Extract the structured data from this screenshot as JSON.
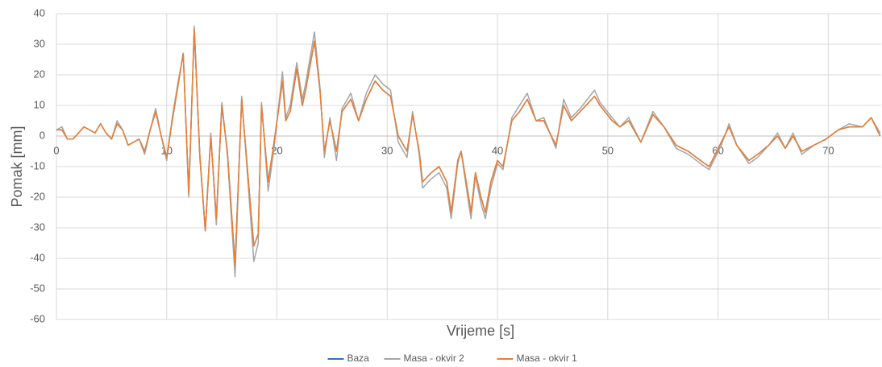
{
  "chart_data": {
    "type": "line",
    "x_label": "Vrijeme [s]",
    "y_label": "Pomak [mm]",
    "xlim": [
      0,
      74.8
    ],
    "xticks": [
      0,
      10,
      20,
      30,
      40,
      50,
      60,
      70
    ],
    "ylim": [
      -60,
      40
    ],
    "yticks": [
      -60,
      -50,
      -40,
      -30,
      -20,
      -10,
      0,
      10,
      20,
      30,
      40
    ],
    "grid": true,
    "legend": "bottom",
    "x": [
      0,
      0.5,
      1,
      1.5,
      2,
      2.5,
      3,
      3.5,
      4,
      4.5,
      5,
      5.5,
      6,
      6.5,
      7,
      7.5,
      8,
      8.5,
      9,
      9.5,
      10,
      10.5,
      11,
      11.5,
      12,
      12.5,
      13,
      13.5,
      14,
      14.5,
      15,
      15.5,
      16.2,
      16.8,
      17.9,
      18.3,
      18.6,
      19.2,
      19.7,
      20.5,
      20.8,
      21.2,
      21.8,
      22.3,
      22.6,
      23.4,
      23.9,
      24.3,
      24.8,
      25.4,
      25.9,
      26.7,
      27.4,
      28.1,
      28.9,
      29.6,
      30.3,
      31,
      31.8,
      32.3,
      32.9,
      33.2,
      34,
      34.7,
      35.4,
      35.8,
      36.4,
      36.7,
      37.3,
      37.6,
      38,
      38.5,
      38.9,
      39.4,
      40,
      40.5,
      41.3,
      42,
      42.7,
      43.5,
      44.2,
      45.3,
      46,
      46.7,
      47.5,
      48.8,
      49.3,
      50.4,
      51.1,
      51.9,
      53,
      54.1,
      55.1,
      56.2,
      57.3,
      58.4,
      59.2,
      60.3,
      61,
      61.7,
      62.8,
      63.6,
      64.6,
      65.4,
      66.1,
      66.8,
      67.6,
      68.7,
      69.8,
      70.9,
      71.9,
      73.1,
      73.9,
      74.7
    ],
    "series": [
      {
        "name": "Baza",
        "color": "#2e75b6",
        "values": [
          2,
          2,
          -1,
          -1,
          1,
          3,
          2,
          1,
          4,
          1,
          -1,
          4,
          2,
          -3,
          -2,
          -1,
          -5,
          2,
          8,
          0,
          -7,
          5,
          16,
          27,
          -19,
          35,
          -6,
          -31,
          0,
          -27,
          10,
          -5,
          -42,
          12,
          -36,
          -32,
          10,
          -15,
          -3,
          18,
          5,
          8,
          22,
          10,
          15,
          31,
          15,
          -5,
          5,
          -5,
          8,
          12,
          5,
          12,
          18,
          15,
          13,
          0,
          -5,
          7,
          -5,
          -15,
          -12,
          -10,
          -15,
          -25,
          -8,
          -5,
          -18,
          -25,
          -12,
          -20,
          -25,
          -15,
          -8,
          -10,
          5,
          8,
          12,
          5,
          5,
          -3,
          10,
          5,
          8,
          13,
          10,
          5,
          3,
          5,
          -2,
          7,
          3,
          -3,
          -5,
          -8,
          -10,
          -2,
          3,
          -3,
          -8,
          -6,
          -3,
          0,
          -4,
          0,
          -5,
          -3,
          -1,
          2,
          3,
          3,
          6,
          0
        ]
      },
      {
        "name": "Masa - okvir 2",
        "color": "#a5a5a5",
        "values": [
          2,
          3,
          -1,
          -1,
          1,
          3,
          2,
          1,
          4,
          1,
          -1,
          5,
          2,
          -3,
          -2,
          -1,
          -6,
          2,
          9,
          0,
          -8,
          6,
          17,
          27,
          -20,
          36,
          -7,
          -31,
          1,
          -29,
          11,
          -6,
          -46,
          13,
          -41,
          -35,
          11,
          -18,
          -5,
          21,
          6,
          10,
          24,
          12,
          17,
          34,
          16,
          -7,
          6,
          -8,
          9,
          14,
          5,
          14,
          20,
          17,
          15,
          -2,
          -7,
          8,
          -6,
          -17,
          -14,
          -12,
          -17,
          -27,
          -9,
          -5,
          -20,
          -27,
          -13,
          -22,
          -27,
          -17,
          -9,
          -11,
          6,
          10,
          14,
          5,
          6,
          -4,
          12,
          6,
          9,
          15,
          11,
          6,
          3,
          6,
          -2,
          8,
          3,
          -4,
          -6,
          -9,
          -11,
          -3,
          4,
          -3,
          -9,
          -7,
          -3,
          1,
          -4,
          1,
          -6,
          -3,
          -1,
          2,
          4,
          3,
          6,
          1
        ]
      },
      {
        "name": "Masa - okvir 1",
        "color": "#ed7d31",
        "values": [
          2,
          2,
          -1,
          -1,
          1,
          3,
          2,
          1,
          4,
          1,
          -1,
          4,
          2,
          -3,
          -2,
          -1,
          -5,
          2,
          8,
          0,
          -7,
          5,
          16,
          27,
          -19,
          35,
          -6,
          -31,
          0,
          -27,
          10,
          -5,
          -42,
          12,
          -36,
          -32,
          10,
          -15,
          -3,
          18,
          5,
          8,
          22,
          10,
          15,
          31,
          15,
          -5,
          5,
          -5,
          8,
          12,
          5,
          12,
          18,
          15,
          13,
          0,
          -5,
          7,
          -5,
          -15,
          -12,
          -10,
          -15,
          -25,
          -8,
          -5,
          -18,
          -25,
          -12,
          -20,
          -25,
          -15,
          -8,
          -10,
          5,
          8,
          12,
          5,
          5,
          -3,
          10,
          5,
          8,
          13,
          10,
          5,
          3,
          5,
          -2,
          7,
          3,
          -3,
          -5,
          -8,
          -10,
          -2,
          3,
          -3,
          -8,
          -6,
          -3,
          0,
          -4,
          0,
          -5,
          -3,
          -1,
          2,
          3,
          3,
          6,
          0
        ]
      }
    ]
  }
}
